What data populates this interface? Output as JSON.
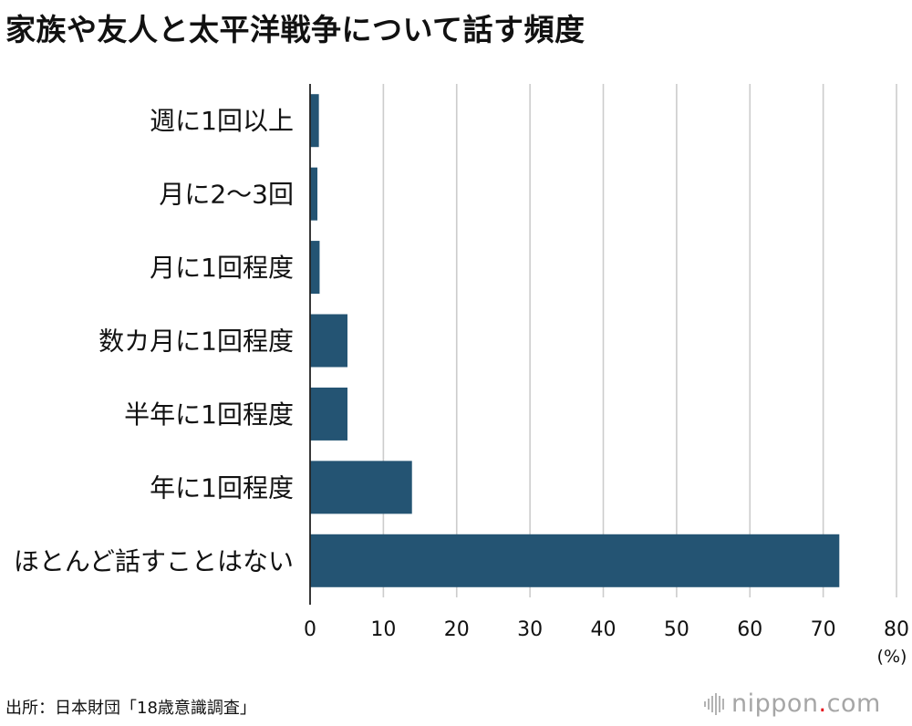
{
  "title": "家族や友人と太平洋戦争について話す頻度",
  "source": "出所：日本財団「18歳意識調査」",
  "logo": {
    "name": "nippon.com",
    "prefix": "nippon",
    "dot_color": "#e60012",
    "suffix": "com"
  },
  "colors": {
    "bar": "#245473",
    "grid": "#cccccc",
    "axis": "#222222"
  },
  "chart_data": {
    "type": "bar",
    "orientation": "horizontal",
    "title": "家族や友人と太平洋戦争について話す頻度",
    "categories": [
      "週に1回以上",
      "月に2〜3回",
      "月に1回程度",
      "数カ月に1回程度",
      "半年に1回程度",
      "年に1回程度",
      "ほとんど話すことはない"
    ],
    "values": [
      1.2,
      1.0,
      1.3,
      5.1,
      5.1,
      13.9,
      72.2
    ],
    "xlim": [
      0,
      80
    ],
    "xticks": [
      0,
      10,
      20,
      30,
      40,
      50,
      60,
      70,
      80
    ],
    "xunit": "(%)",
    "grid": "vertical"
  }
}
